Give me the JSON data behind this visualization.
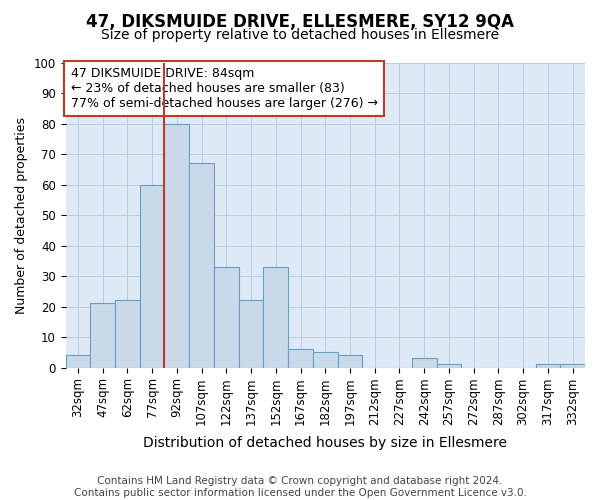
{
  "title": "47, DIKSMUIDE DRIVE, ELLESMERE, SY12 9QA",
  "subtitle": "Size of property relative to detached houses in Ellesmere",
  "xlabel": "Distribution of detached houses by size in Ellesmere",
  "ylabel": "Number of detached properties",
  "bins": [
    "32sqm",
    "47sqm",
    "62sqm",
    "77sqm",
    "92sqm",
    "107sqm",
    "122sqm",
    "137sqm",
    "152sqm",
    "167sqm",
    "182sqm",
    "197sqm",
    "212sqm",
    "227sqm",
    "242sqm",
    "257sqm",
    "272sqm",
    "287sqm",
    "302sqm",
    "317sqm",
    "332sqm"
  ],
  "counts": [
    4,
    21,
    22,
    60,
    80,
    67,
    33,
    22,
    33,
    6,
    5,
    4,
    0,
    0,
    3,
    1,
    0,
    0,
    0,
    1,
    1
  ],
  "bar_color": "#c9d9ea",
  "bar_edge_color": "#6a9ec0",
  "property_line_color": "#c0392b",
  "property_line_x": 4.0,
  "annotation_line1": "47 DIKSMUIDE DRIVE: 84sqm",
  "annotation_line2": "← 23% of detached houses are smaller (83)",
  "annotation_line3": "77% of semi-detached houses are larger (276) →",
  "annotation_box_facecolor": "#ffffff",
  "annotation_box_edgecolor": "#c0392b",
  "ylim": [
    0,
    100
  ],
  "yticks": [
    0,
    10,
    20,
    30,
    40,
    50,
    60,
    70,
    80,
    90,
    100
  ],
  "grid_color": "#b8cfe0",
  "background_color": "#ddeaf5",
  "footer_text": "Contains HM Land Registry data © Crown copyright and database right 2024.\nContains public sector information licensed under the Open Government Licence v3.0.",
  "title_fontsize": 12,
  "subtitle_fontsize": 10,
  "xlabel_fontsize": 10,
  "ylabel_fontsize": 9,
  "tick_fontsize": 8.5,
  "annotation_fontsize": 9,
  "footer_fontsize": 7.5
}
